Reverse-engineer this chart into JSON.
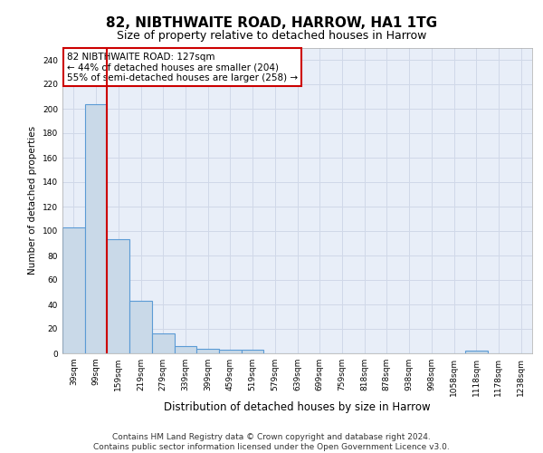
{
  "title": "82, NIBTHWAITE ROAD, HARROW, HA1 1TG",
  "subtitle": "Size of property relative to detached houses in Harrow",
  "xlabel": "Distribution of detached houses by size in Harrow",
  "ylabel": "Number of detached properties",
  "categories": [
    "39sqm",
    "99sqm",
    "159sqm",
    "219sqm",
    "279sqm",
    "339sqm",
    "399sqm",
    "459sqm",
    "519sqm",
    "579sqm",
    "639sqm",
    "699sqm",
    "759sqm",
    "818sqm",
    "878sqm",
    "938sqm",
    "998sqm",
    "1058sqm",
    "1118sqm",
    "1178sqm",
    "1238sqm"
  ],
  "values": [
    103,
    204,
    93,
    43,
    16,
    6,
    4,
    3,
    3,
    0,
    0,
    0,
    0,
    0,
    0,
    0,
    0,
    0,
    2,
    0,
    0
  ],
  "bar_color": "#c9d9e8",
  "bar_edge_color": "#5b9bd5",
  "bar_edge_width": 0.8,
  "red_line_color": "#cc0000",
  "annotation_text": "82 NIBTHWAITE ROAD: 127sqm\n← 44% of detached houses are smaller (204)\n55% of semi-detached houses are larger (258) →",
  "annotation_box_color": "white",
  "annotation_box_edge": "#cc0000",
  "ylim": [
    0,
    250
  ],
  "yticks": [
    0,
    20,
    40,
    60,
    80,
    100,
    120,
    140,
    160,
    180,
    200,
    220,
    240
  ],
  "grid_color": "#d0d8e8",
  "background_color": "#e8eef8",
  "footer": "Contains HM Land Registry data © Crown copyright and database right 2024.\nContains public sector information licensed under the Open Government Licence v3.0.",
  "title_fontsize": 11,
  "subtitle_fontsize": 9,
  "xlabel_fontsize": 8.5,
  "ylabel_fontsize": 7.5,
  "tick_fontsize": 6.5,
  "annotation_fontsize": 7.5,
  "footer_fontsize": 6.5
}
